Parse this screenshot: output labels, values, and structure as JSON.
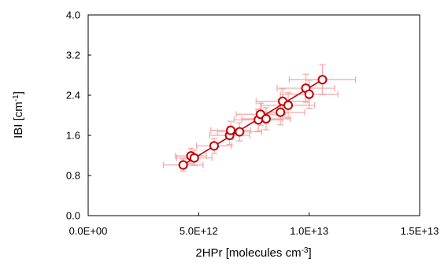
{
  "chart_data": {
    "type": "scatter",
    "xlabel": "2HPr [molecules cm",
    "xlabel_sup": "-3",
    "xlabel_suffix": "]",
    "ylabel": "IBI [cm",
    "ylabel_sup": "-1",
    "ylabel_suffix": "]",
    "xlim": [
      0,
      15000000000000
    ],
    "ylim": [
      0,
      4.0
    ],
    "xticks": [
      0,
      5000000000000,
      10000000000000,
      15000000000000
    ],
    "xtick_labels": [
      "0.0E+00",
      "5.0E+12",
      "1.0E+13",
      "1.5E+13"
    ],
    "yticks": [
      0,
      0.8,
      1.6,
      2.4,
      3.2,
      4.0
    ],
    "ytick_labels": [
      "0.0",
      "0.8",
      "1.6",
      "2.4",
      "3.2",
      "4.0"
    ],
    "grid": false,
    "series": [
      {
        "points": [
          {
            "x": 4300000000000,
            "y": 1.01,
            "xerr": 900000000000,
            "yerr": 0.12
          },
          {
            "x": 4650000000000,
            "y": 1.19,
            "xerr": 700000000000,
            "yerr": 0.15
          },
          {
            "x": 4800000000000,
            "y": 1.15,
            "xerr": 800000000000,
            "yerr": 0.15
          },
          {
            "x": 5700000000000,
            "y": 1.39,
            "xerr": 800000000000,
            "yerr": 0.15
          },
          {
            "x": 6400000000000,
            "y": 1.6,
            "xerr": 900000000000,
            "yerr": 0.18
          },
          {
            "x": 6450000000000,
            "y": 1.7,
            "xerr": 900000000000,
            "yerr": 0.18
          },
          {
            "x": 6850000000000,
            "y": 1.67,
            "xerr": 1000000000000,
            "yerr": 0.18
          },
          {
            "x": 7700000000000,
            "y": 1.91,
            "xerr": 1100000000000,
            "yerr": 0.22
          },
          {
            "x": 7800000000000,
            "y": 2.02,
            "xerr": 1100000000000,
            "yerr": 0.22
          },
          {
            "x": 8050000000000,
            "y": 1.93,
            "xerr": 1100000000000,
            "yerr": 0.22
          },
          {
            "x": 8700000000000,
            "y": 2.06,
            "xerr": 1100000000000,
            "yerr": 0.25
          },
          {
            "x": 8800000000000,
            "y": 2.28,
            "xerr": 1200000000000,
            "yerr": 0.25
          },
          {
            "x": 9050000000000,
            "y": 2.2,
            "xerr": 1200000000000,
            "yerr": 0.25
          },
          {
            "x": 9850000000000,
            "y": 2.54,
            "xerr": 1300000000000,
            "yerr": 0.28
          },
          {
            "x": 10000000000000,
            "y": 2.42,
            "xerr": 1300000000000,
            "yerr": 0.28
          },
          {
            "x": 10600000000000,
            "y": 2.71,
            "xerr": 1500000000000,
            "yerr": 0.3
          }
        ],
        "fit": {
          "x": [
            4300000000000,
            10600000000000
          ],
          "y": [
            1.01,
            2.71
          ]
        }
      }
    ]
  },
  "colors": {
    "marker": "#c00000",
    "marker_fill": "#ffffff",
    "fit_line": "#c00000",
    "error_bar": "#f4a6a6",
    "axis": "#000000"
  }
}
